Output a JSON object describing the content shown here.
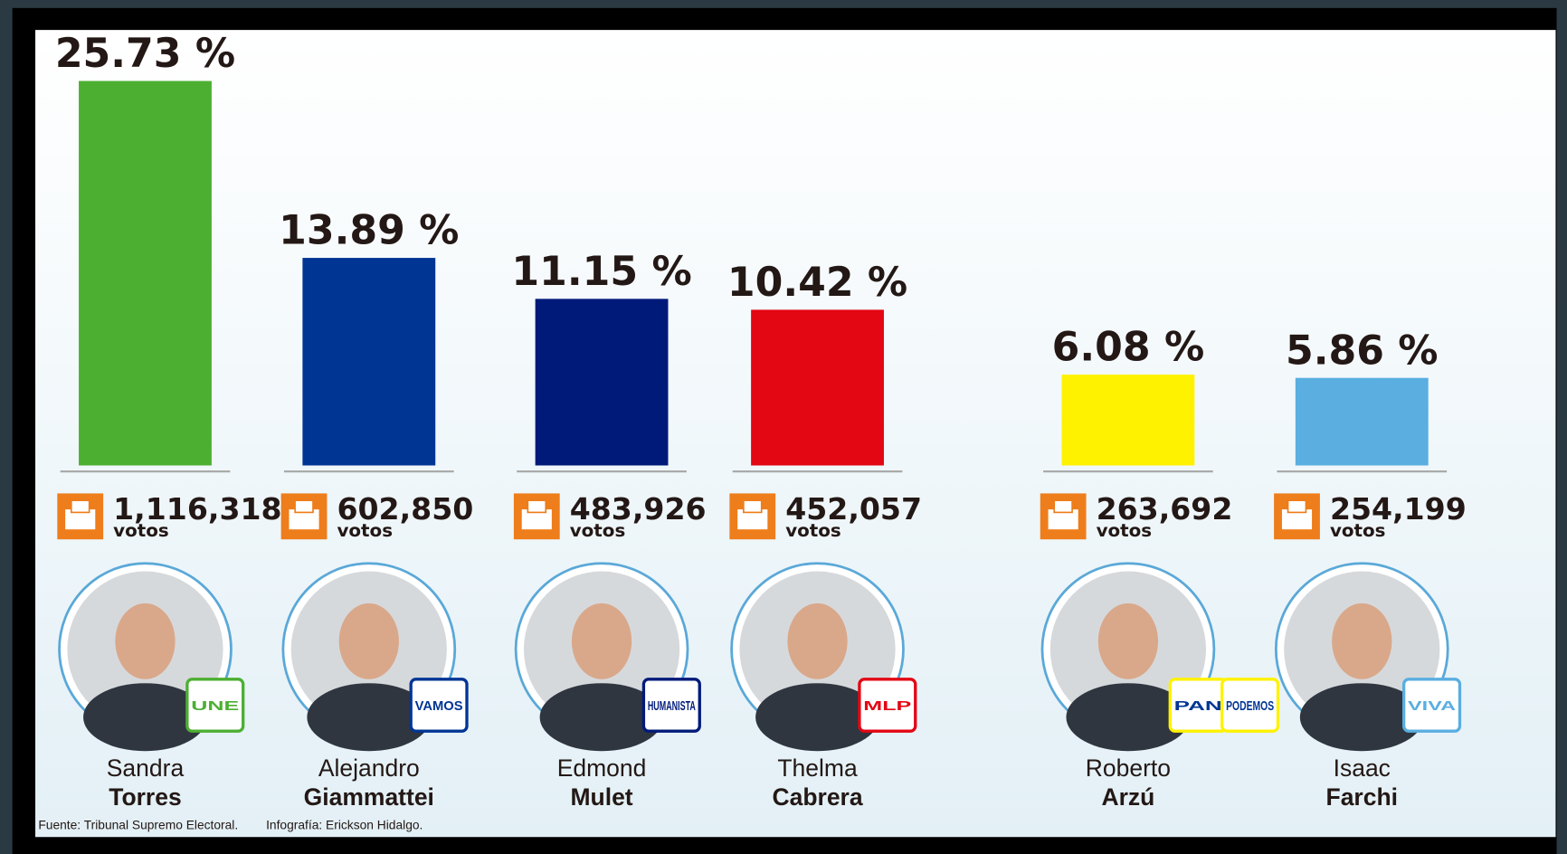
{
  "chart_data": {
    "type": "bar",
    "values": [
      25.73,
      13.89,
      11.15,
      10.42,
      6.08,
      5.86
    ],
    "value_labels": [
      "25.73 %",
      "13.89 %",
      "11.15 %",
      "10.42 %",
      "6.08 %",
      "5.86 %"
    ],
    "colors": [
      "#4caf32",
      "#003594",
      "#001a7a",
      "#e30613",
      "#fff200",
      "#5aaee0"
    ],
    "votes": [
      1116318,
      602850,
      483926,
      452057,
      263692,
      254199
    ],
    "votes_labels": [
      "1,116,318",
      "602,850",
      "483,926",
      "452,057",
      "263,692",
      "254,199"
    ],
    "votes_unit": "votos",
    "first_names": [
      "Sandra",
      "Alejandro",
      "Edmond",
      "Thelma",
      "Roberto",
      "Isaac"
    ],
    "last_names": [
      "Torres",
      "Giammattei",
      "Mulet",
      "Cabrera",
      "Arzú",
      "Farchi"
    ],
    "parties": [
      [
        "UNE"
      ],
      [
        "VAMOS"
      ],
      [
        "HUMANISTA"
      ],
      [
        "MLP"
      ],
      [
        "PAN",
        "PODEMOS"
      ],
      [
        "VIVA"
      ]
    ],
    "source": "Fuente: Tribunal Supremo Electoral.",
    "credit": "Infografía: Erickson Hidalgo."
  }
}
